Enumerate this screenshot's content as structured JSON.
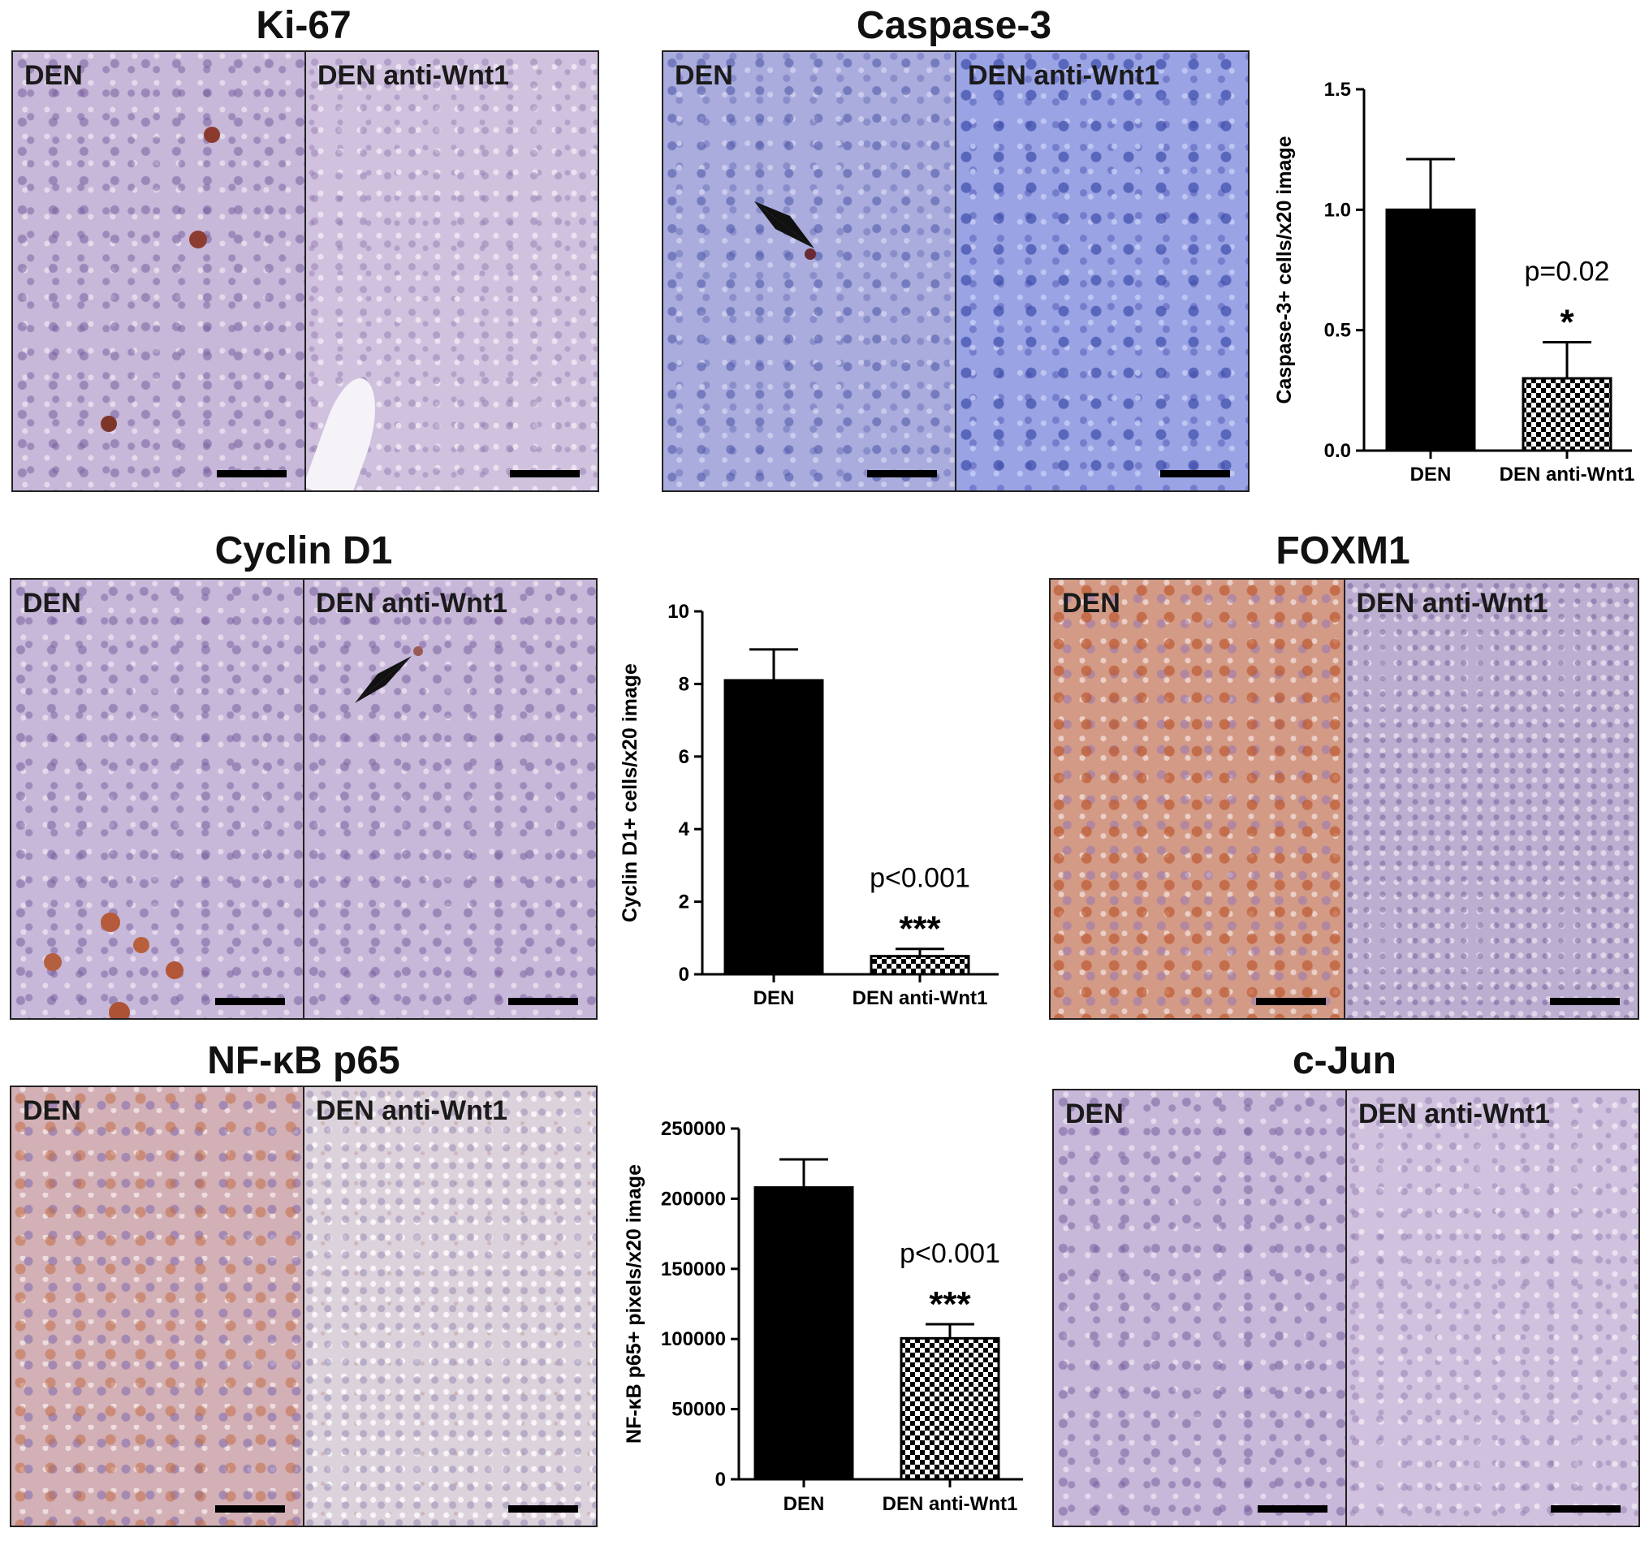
{
  "labels": {
    "den": "DEN",
    "den_anti": "DEN anti-Wnt1"
  },
  "panels": {
    "ki67": {
      "title": "Ki-67"
    },
    "caspase3": {
      "title": "Caspase-3"
    },
    "cyclind1": {
      "title": "Cyclin D1"
    },
    "foxm1": {
      "title": "FOXM1"
    },
    "nfkb": {
      "title": "NF-κB p65"
    },
    "cjun": {
      "title": "c-Jun"
    }
  },
  "colors": {
    "bar_den": "#000000",
    "bar_anti_pattern": "checkerboard",
    "axis": "#000000"
  },
  "chart_data": [
    {
      "id": "caspase3",
      "type": "bar",
      "categories": [
        "DEN",
        "DEN anti-Wnt1"
      ],
      "values": [
        1.0,
        0.3
      ],
      "errors": [
        0.21,
        0.15
      ],
      "ylabel": "Caspase-3+ cells/x20 image",
      "ylim": [
        0,
        1.5
      ],
      "yticks": [
        "0.0",
        "0.5",
        "1.0",
        "1.5"
      ],
      "annotation": {
        "text": "p=0.02",
        "stars": "*"
      }
    },
    {
      "id": "cyclind1",
      "type": "bar",
      "categories": [
        "DEN",
        "DEN anti-Wnt1"
      ],
      "values": [
        8.1,
        0.5
      ],
      "errors": [
        0.85,
        0.2
      ],
      "ylabel": "Cyclin D1+ cells/x20 image",
      "ylim": [
        0,
        10
      ],
      "yticks": [
        "0",
        "2",
        "4",
        "6",
        "8",
        "10"
      ],
      "annotation": {
        "text": "p<0.001",
        "stars": "***"
      }
    },
    {
      "id": "nfkb",
      "type": "bar",
      "categories": [
        "DEN",
        "DEN anti-Wnt1"
      ],
      "values": [
        208000,
        100500
      ],
      "errors": [
        20000,
        10000
      ],
      "ylabel": "NF-κB p65+ pixels/x20 image",
      "ylim": [
        0,
        250000
      ],
      "yticks": [
        "0",
        "50000",
        "100000",
        "150000",
        "200000",
        "250000"
      ],
      "annotation": {
        "text": "p<0.001",
        "stars": "***"
      }
    }
  ]
}
